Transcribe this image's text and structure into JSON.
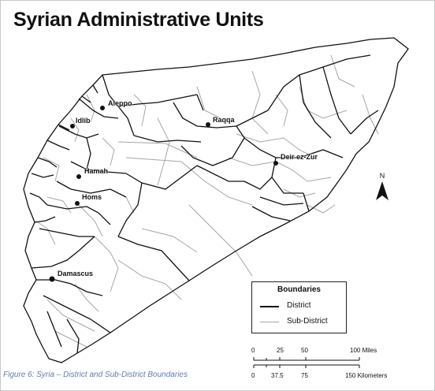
{
  "title": "Syrian Administrative Units",
  "caption": "Figure 6: Syria – District and Sub-District Boundaries",
  "cities": [
    {
      "name": "Aleppo"
    },
    {
      "name": "Idlib"
    },
    {
      "name": "Raqqa"
    },
    {
      "name": "Deir ez-Zur"
    },
    {
      "name": "Hamah"
    },
    {
      "name": "Homs"
    },
    {
      "name": "Damascus"
    }
  ],
  "legend": {
    "title": "Boundaries",
    "items": [
      {
        "label": "District",
        "color": "#111111"
      },
      {
        "label": "Sub-District",
        "color": "#a6a6a6"
      }
    ]
  },
  "north_arrow": {
    "label": "N"
  },
  "scale_bar": {
    "miles": {
      "ticks": [
        "0",
        "25",
        "50",
        "100 Miles"
      ]
    },
    "km": {
      "ticks": [
        "0",
        "37.5",
        "75",
        "150 Kilometers"
      ]
    }
  },
  "colors": {
    "district": "#111111",
    "subdistrict": "#a6a6a6",
    "caption": "#5a7fb0"
  }
}
